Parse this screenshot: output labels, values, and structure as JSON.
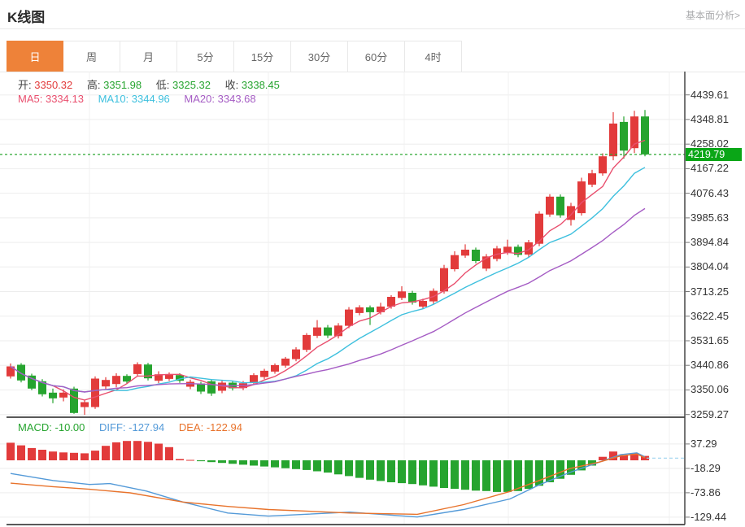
{
  "header": {
    "title": "K线图",
    "link_label": "基本面分析>"
  },
  "tabs": {
    "items": [
      {
        "label": "日",
        "selected": true
      },
      {
        "label": "周",
        "selected": false
      },
      {
        "label": "月",
        "selected": false
      },
      {
        "label": "5分",
        "selected": false
      },
      {
        "label": "15分",
        "selected": false
      },
      {
        "label": "30分",
        "selected": false
      },
      {
        "label": "60分",
        "selected": false
      },
      {
        "label": "4时",
        "selected": false
      }
    ]
  },
  "info": {
    "open_label": "开:",
    "open": "3350.32",
    "high_label": "高:",
    "high": "3351.98",
    "low_label": "低:",
    "low": "3325.32",
    "close_label": "收:",
    "close": "3338.45",
    "ma5_label": "MA5:",
    "ma5": "3334.13",
    "ma10_label": "MA10:",
    "ma10": "3344.96",
    "ma20_label": "MA20:",
    "ma20": "3343.68"
  },
  "macd_info": {
    "macd_label": "MACD:",
    "macd": "-10.00",
    "diff_label": "DIFF:",
    "diff": "-127.94",
    "dea_label": "DEA:",
    "dea": "-122.94"
  },
  "colors": {
    "up": "#e23b3b",
    "down": "#26a42f",
    "ma5": "#e94f6e",
    "ma10": "#3ec0de",
    "ma20": "#a55cc4",
    "diff": "#549ad8",
    "dea": "#e8732c",
    "badge": "#0aa617",
    "current_line": "#2fa834",
    "tab_accent": "#ee8239",
    "grid": "#ededed",
    "axis": "#3a3a3a"
  },
  "chart_data": {
    "type": "candlestick",
    "title": "K线图 (daily K-line with MA5/MA10/MA20 and MACD)",
    "legend_position": "top-left",
    "grid": true,
    "price_axis": {
      "ticks": [
        4439.61,
        4348.81,
        4258.02,
        4167.22,
        4076.43,
        3985.63,
        3894.84,
        3804.04,
        3713.25,
        3622.45,
        3531.65,
        3440.86,
        3350.06,
        3259.27
      ],
      "current_price": 4219.79
    },
    "ma_periods": [
      5,
      10,
      20
    ],
    "candles": [
      [
        3400,
        3448,
        3392,
        3437
      ],
      [
        3443,
        3449,
        3378,
        3385
      ],
      [
        3403,
        3410,
        3349,
        3355
      ],
      [
        3382,
        3390,
        3326,
        3334
      ],
      [
        3340,
        3355,
        3301,
        3319
      ],
      [
        3322,
        3352,
        3308,
        3340
      ],
      [
        3355,
        3362,
        3262,
        3265
      ],
      [
        3287,
        3312,
        3258,
        3305
      ],
      [
        3287,
        3400,
        3280,
        3392
      ],
      [
        3363,
        3397,
        3352,
        3387
      ],
      [
        3372,
        3412,
        3360,
        3402
      ],
      [
        3402,
        3408,
        3372,
        3381
      ],
      [
        3409,
        3452,
        3400,
        3445
      ],
      [
        3444,
        3450,
        3385,
        3393
      ],
      [
        3384,
        3419,
        3375,
        3408
      ],
      [
        3391,
        3415,
        3383,
        3409
      ],
      [
        3405,
        3412,
        3376,
        3384
      ],
      [
        3362,
        3388,
        3353,
        3380
      ],
      [
        3374,
        3380,
        3335,
        3344
      ],
      [
        3382,
        3389,
        3328,
        3337
      ],
      [
        3347,
        3386,
        3338,
        3377
      ],
      [
        3377,
        3384,
        3348,
        3356
      ],
      [
        3357,
        3383,
        3349,
        3375
      ],
      [
        3376,
        3412,
        3368,
        3405
      ],
      [
        3398,
        3428,
        3390,
        3421
      ],
      [
        3418,
        3448,
        3410,
        3442
      ],
      [
        3440,
        3472,
        3432,
        3466
      ],
      [
        3464,
        3508,
        3456,
        3500
      ],
      [
        3498,
        3560,
        3490,
        3553
      ],
      [
        3550,
        3608,
        3542,
        3581
      ],
      [
        3581,
        3590,
        3542,
        3551
      ],
      [
        3549,
        3597,
        3540,
        3588
      ],
      [
        3587,
        3656,
        3578,
        3647
      ],
      [
        3634,
        3663,
        3626,
        3655
      ],
      [
        3655,
        3662,
        3590,
        3637
      ],
      [
        3637,
        3672,
        3629,
        3658
      ],
      [
        3658,
        3700,
        3650,
        3694
      ],
      [
        3690,
        3733,
        3682,
        3714
      ],
      [
        3709,
        3716,
        3665,
        3673
      ],
      [
        3658,
        3687,
        3650,
        3679
      ],
      [
        3677,
        3725,
        3668,
        3716
      ],
      [
        3714,
        3812,
        3706,
        3800
      ],
      [
        3796,
        3862,
        3788,
        3848
      ],
      [
        3846,
        3888,
        3838,
        3868
      ],
      [
        3868,
        3876,
        3818,
        3826
      ],
      [
        3798,
        3852,
        3789,
        3843
      ],
      [
        3834,
        3882,
        3825,
        3873
      ],
      [
        3858,
        3905,
        3849,
        3879
      ],
      [
        3879,
        3887,
        3840,
        3849
      ],
      [
        3850,
        3904,
        3841,
        3895
      ],
      [
        3890,
        4010,
        3881,
        4001
      ],
      [
        3998,
        4073,
        3989,
        4064
      ],
      [
        4064,
        4072,
        3986,
        3995
      ],
      [
        3978,
        4041,
        3957,
        4029
      ],
      [
        4003,
        4134,
        3994,
        4120
      ],
      [
        4108,
        4163,
        4099,
        4150
      ],
      [
        4150,
        4224,
        4141,
        4213
      ],
      [
        4213,
        4376,
        4198,
        4334
      ],
      [
        4340,
        4360,
        4204,
        4234
      ],
      [
        4243,
        4381,
        4225,
        4360
      ],
      [
        4360,
        4384,
        4213,
        4219.79
      ]
    ],
    "macd": {
      "ticks": [
        37.29,
        -18.29,
        -73.86,
        -129.44
      ],
      "hist": [
        40,
        34,
        28,
        24,
        20,
        18,
        17,
        16,
        22,
        33,
        41,
        44,
        44,
        42,
        38,
        30,
        3,
        1,
        -2,
        -4,
        -6,
        -8,
        -10,
        -12,
        -14,
        -16,
        -18,
        -20,
        -22,
        -25,
        -28,
        -32,
        -36,
        -40,
        -44,
        -47,
        -50,
        -52,
        -54,
        -57,
        -60,
        -63,
        -65,
        -67,
        -69,
        -70,
        -72,
        -72,
        -70,
        -65,
        -58,
        -50,
        -42,
        -33,
        -23,
        -12,
        8,
        20,
        12,
        16,
        10
      ],
      "diff_points": [
        [
          13,
          -30
        ],
        [
          65,
          -46
        ],
        [
          110,
          -55
        ],
        [
          135,
          -53
        ],
        [
          180,
          -70
        ],
        [
          225,
          -95
        ],
        [
          280,
          -120
        ],
        [
          330,
          -127
        ],
        [
          430,
          -118
        ],
        [
          513,
          -129
        ],
        [
          570,
          -112
        ],
        [
          627,
          -88
        ],
        [
          663,
          -56
        ],
        [
          700,
          -28
        ],
        [
          737,
          -4
        ],
        [
          763,
          13
        ],
        [
          783,
          17
        ],
        [
          793,
          8
        ]
      ],
      "dea_points": [
        [
          13,
          -52
        ],
        [
          65,
          -60
        ],
        [
          110,
          -66
        ],
        [
          160,
          -74
        ],
        [
          225,
          -95
        ],
        [
          280,
          -105
        ],
        [
          330,
          -112
        ],
        [
          430,
          -120
        ],
        [
          513,
          -123
        ],
        [
          570,
          -101
        ],
        [
          627,
          -71
        ],
        [
          663,
          -46
        ],
        [
          700,
          -19
        ],
        [
          737,
          -4
        ],
        [
          763,
          10
        ],
        [
          783,
          14
        ],
        [
          793,
          6
        ]
      ],
      "latest_line_value": 5
    }
  }
}
